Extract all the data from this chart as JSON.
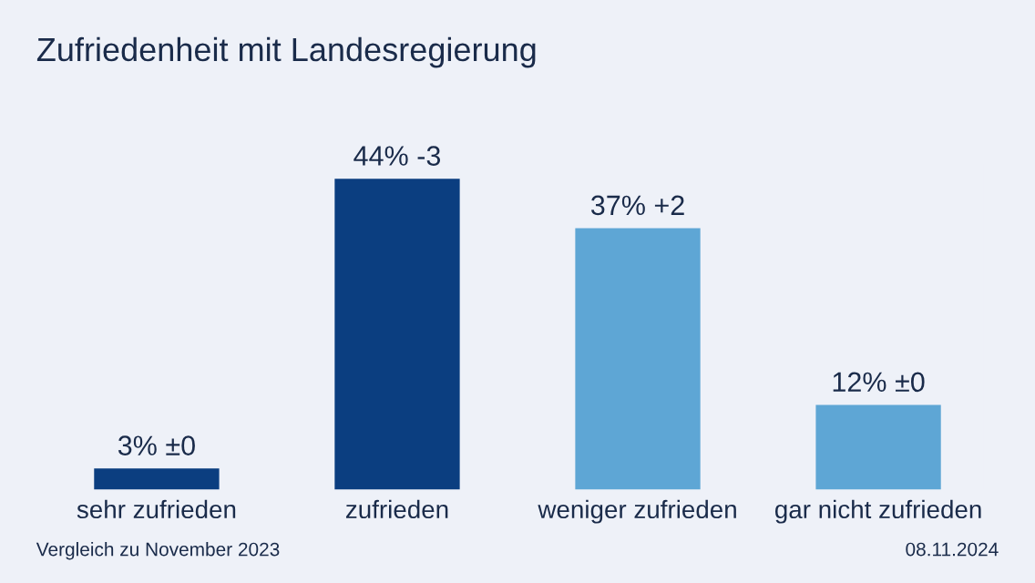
{
  "chart_data": {
    "type": "bar",
    "title": "Zufriedenheit mit Landesregierung",
    "categories": [
      "sehr zufrieden",
      "zufrieden",
      "weniger zufrieden",
      "gar nicht zufrieden"
    ],
    "values": [
      3,
      44,
      37,
      12
    ],
    "colors": [
      "#0b3e80",
      "#0b3e80",
      "#5ea6d5",
      "#5ea6d5"
    ],
    "value_labels": [
      "3% ±0",
      "44% -3",
      "37% +2",
      "12% ±0"
    ],
    "annotations": [
      "Vergleich zu November 2023",
      "08.11.2024"
    ],
    "grid": false,
    "legend": false
  }
}
